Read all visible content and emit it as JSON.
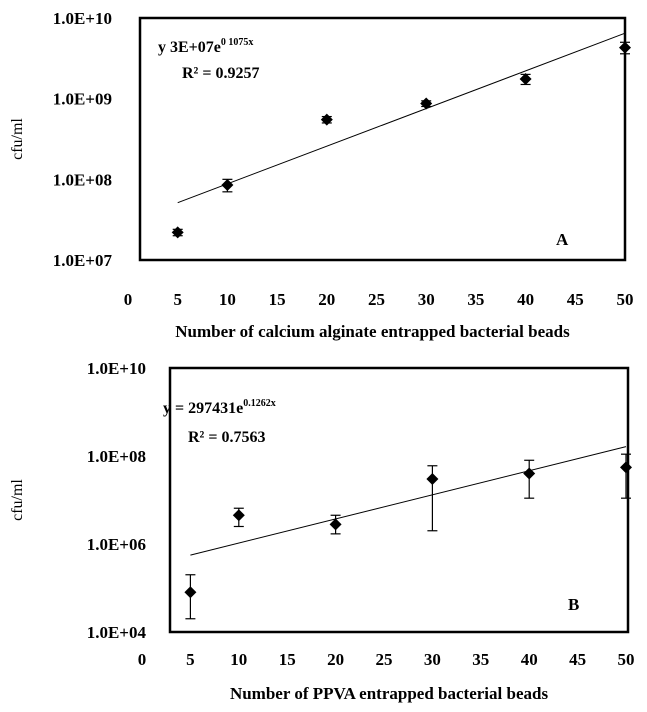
{
  "chart_data": [
    {
      "type": "scatter",
      "panel_label": "A",
      "xlabel": "Number of calcium alginate entrapped bacterial beads",
      "ylabel": "cfu/ml",
      "y_scale": "log",
      "xlim": [
        0,
        50
      ],
      "ylim": [
        10000000,
        10000000000
      ],
      "x_ticks": [
        0,
        5,
        10,
        15,
        20,
        25,
        30,
        35,
        40,
        45,
        50
      ],
      "y_ticks": [
        10000000,
        100000000,
        1000000000,
        10000000000
      ],
      "y_tick_labels": [
        "1.0E+07",
        "1.0E+08",
        "1.0E+09",
        "1.0E+10"
      ],
      "points": [
        {
          "x": 5,
          "y": 22000000,
          "err_low": 20000000,
          "err_high": 24000000
        },
        {
          "x": 10,
          "y": 85000000,
          "err_low": 70000000,
          "err_high": 100000000
        },
        {
          "x": 20,
          "y": 550000000,
          "err_low": 500000000,
          "err_high": 600000000
        },
        {
          "x": 30,
          "y": 870000000,
          "err_low": 800000000,
          "err_high": 940000000
        },
        {
          "x": 40,
          "y": 1750000000,
          "err_low": 1500000000,
          "err_high": 2000000000
        },
        {
          "x": 50,
          "y": 4300000000,
          "err_low": 3600000000,
          "err_high": 5000000000
        }
      ],
      "trendline": {
        "a": 30000000,
        "b": 0.1075,
        "x_range": [
          5,
          50
        ]
      },
      "equation": {
        "prefix": "y",
        "coef": "3E+07e",
        "exp": "0 1075x"
      },
      "r_squared": "R² = 0.9257",
      "grid": false,
      "marker": "diamond",
      "color": "#000000"
    },
    {
      "type": "scatter",
      "panel_label": "B",
      "xlabel": "Number of PPVA entrapped bacterial beads",
      "ylabel": "cfu/ml",
      "y_scale": "log",
      "xlim": [
        0,
        50
      ],
      "ylim": [
        10000,
        10000000000
      ],
      "x_ticks": [
        0,
        5,
        10,
        15,
        20,
        25,
        30,
        35,
        40,
        45,
        50
      ],
      "y_ticks": [
        10000,
        1000000,
        100000000,
        10000000000
      ],
      "y_tick_labels": [
        "1.0E+04",
        "1.0E+06",
        "1.0E+08",
        "1.0E+10"
      ],
      "points": [
        {
          "x": 5,
          "y": 80000,
          "err_low": 20000,
          "err_high": 200000
        },
        {
          "x": 10,
          "y": 4500000,
          "err_low": 2500000,
          "err_high": 6500000
        },
        {
          "x": 20,
          "y": 2800000,
          "err_low": 1700000,
          "err_high": 4500000
        },
        {
          "x": 30,
          "y": 30000000,
          "err_low": 2000000,
          "err_high": 60000000
        },
        {
          "x": 40,
          "y": 40000000,
          "err_low": 11000000,
          "err_high": 80000000
        },
        {
          "x": 50,
          "y": 55000000,
          "err_low": 11000000,
          "err_high": 110000000
        }
      ],
      "trendline": {
        "a": 297431,
        "b": 0.1262,
        "x_range": [
          5,
          50
        ]
      },
      "equation": {
        "prefix": "y = ",
        "coef": "297431e",
        "exp": "0.1262x"
      },
      "r_squared": "R² = 0.7563",
      "grid": false,
      "marker": "diamond",
      "color": "#000000"
    }
  ]
}
